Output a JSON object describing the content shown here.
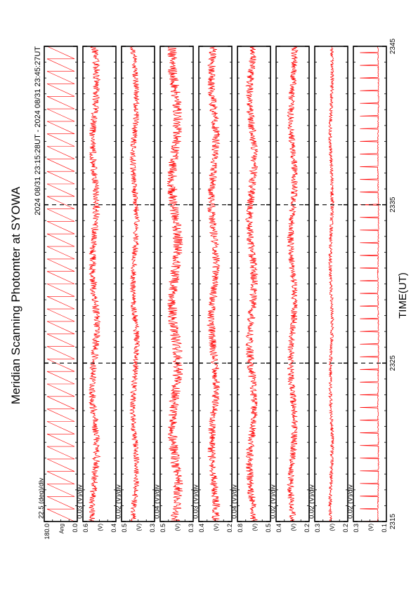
{
  "title": "Meridian Scanning Photomter at SYOWA",
  "time_range": "2024 08/31 23:15:28UT - 2024 08/31 23:45:27UT",
  "xlabel": "TIME(UT)",
  "x_ticks": [
    "2315",
    "2325",
    "2335",
    "2345"
  ],
  "colors": {
    "trace": "#ff0000",
    "frame": "#000000"
  },
  "chart_data": {
    "type": "line",
    "title": "Meridian Scanning Photomter at SYOWA",
    "xlabel": "TIME(UT)",
    "x_range": [
      2315,
      2345
    ],
    "x_ticks": [
      "2315",
      "2325",
      "2335",
      "2345"
    ],
    "panels": [
      {
        "ylabel": "Ang",
        "scale": "22.5 (deg)/div",
        "y_ticks": [
          "180.0",
          "0.0"
        ],
        "ylim": [
          0,
          180
        ],
        "mean": 90,
        "noise": 0,
        "sawtooth": true
      },
      {
        "ylabel": "(V)",
        "scale": "0.03 (V)/div",
        "y_ticks": [
          "0.6",
          "0.4"
        ],
        "ylim": [
          0.4,
          0.6
        ],
        "mean": 0.53,
        "noise": 0.022
      },
      {
        "ylabel": "(V)",
        "scale": "0.02 (V)/div",
        "y_ticks": [
          "0.5",
          "0.3"
        ],
        "ylim": [
          0.3,
          0.5
        ],
        "mean": 0.42,
        "noise": 0.018
      },
      {
        "ylabel": "(V)",
        "scale": "0.04 (V)/div",
        "y_ticks": [
          "0.5",
          "0.3"
        ],
        "ylim": [
          0.3,
          0.5
        ],
        "mean": 0.41,
        "noise": 0.03
      },
      {
        "ylabel": "(V)",
        "scale": "0.03 (V)/div",
        "y_ticks": [
          "0.4",
          "0.2"
        ],
        "ylim": [
          0.2,
          0.4
        ],
        "mean": 0.31,
        "noise": 0.024
      },
      {
        "ylabel": "(V)",
        "scale": "0.04 (V)/div",
        "y_ticks": [
          "0.8",
          "0.5"
        ],
        "ylim": [
          0.5,
          0.8
        ],
        "mean": 0.67,
        "noise": 0.035
      },
      {
        "ylabel": "(V)",
        "scale": "0.02 (V)/div",
        "y_ticks": [
          "0.4",
          "0.2"
        ],
        "ylim": [
          0.2,
          0.4
        ],
        "mean": 0.3,
        "noise": 0.02
      },
      {
        "ylabel": "(V)",
        "scale": "0.02 (V)/div",
        "y_ticks": [
          "0.3",
          "0.2"
        ],
        "ylim": [
          0.2,
          0.3
        ],
        "mean": 0.25,
        "noise": 0.005
      },
      {
        "ylabel": "(V)",
        "scale": "0.02 (V)/div",
        "y_ticks": [
          "0.3",
          "0.1"
        ],
        "ylim": [
          0.1,
          0.3
        ],
        "mean": 0.15,
        "noise": 0.003,
        "spiky": true
      }
    ]
  }
}
